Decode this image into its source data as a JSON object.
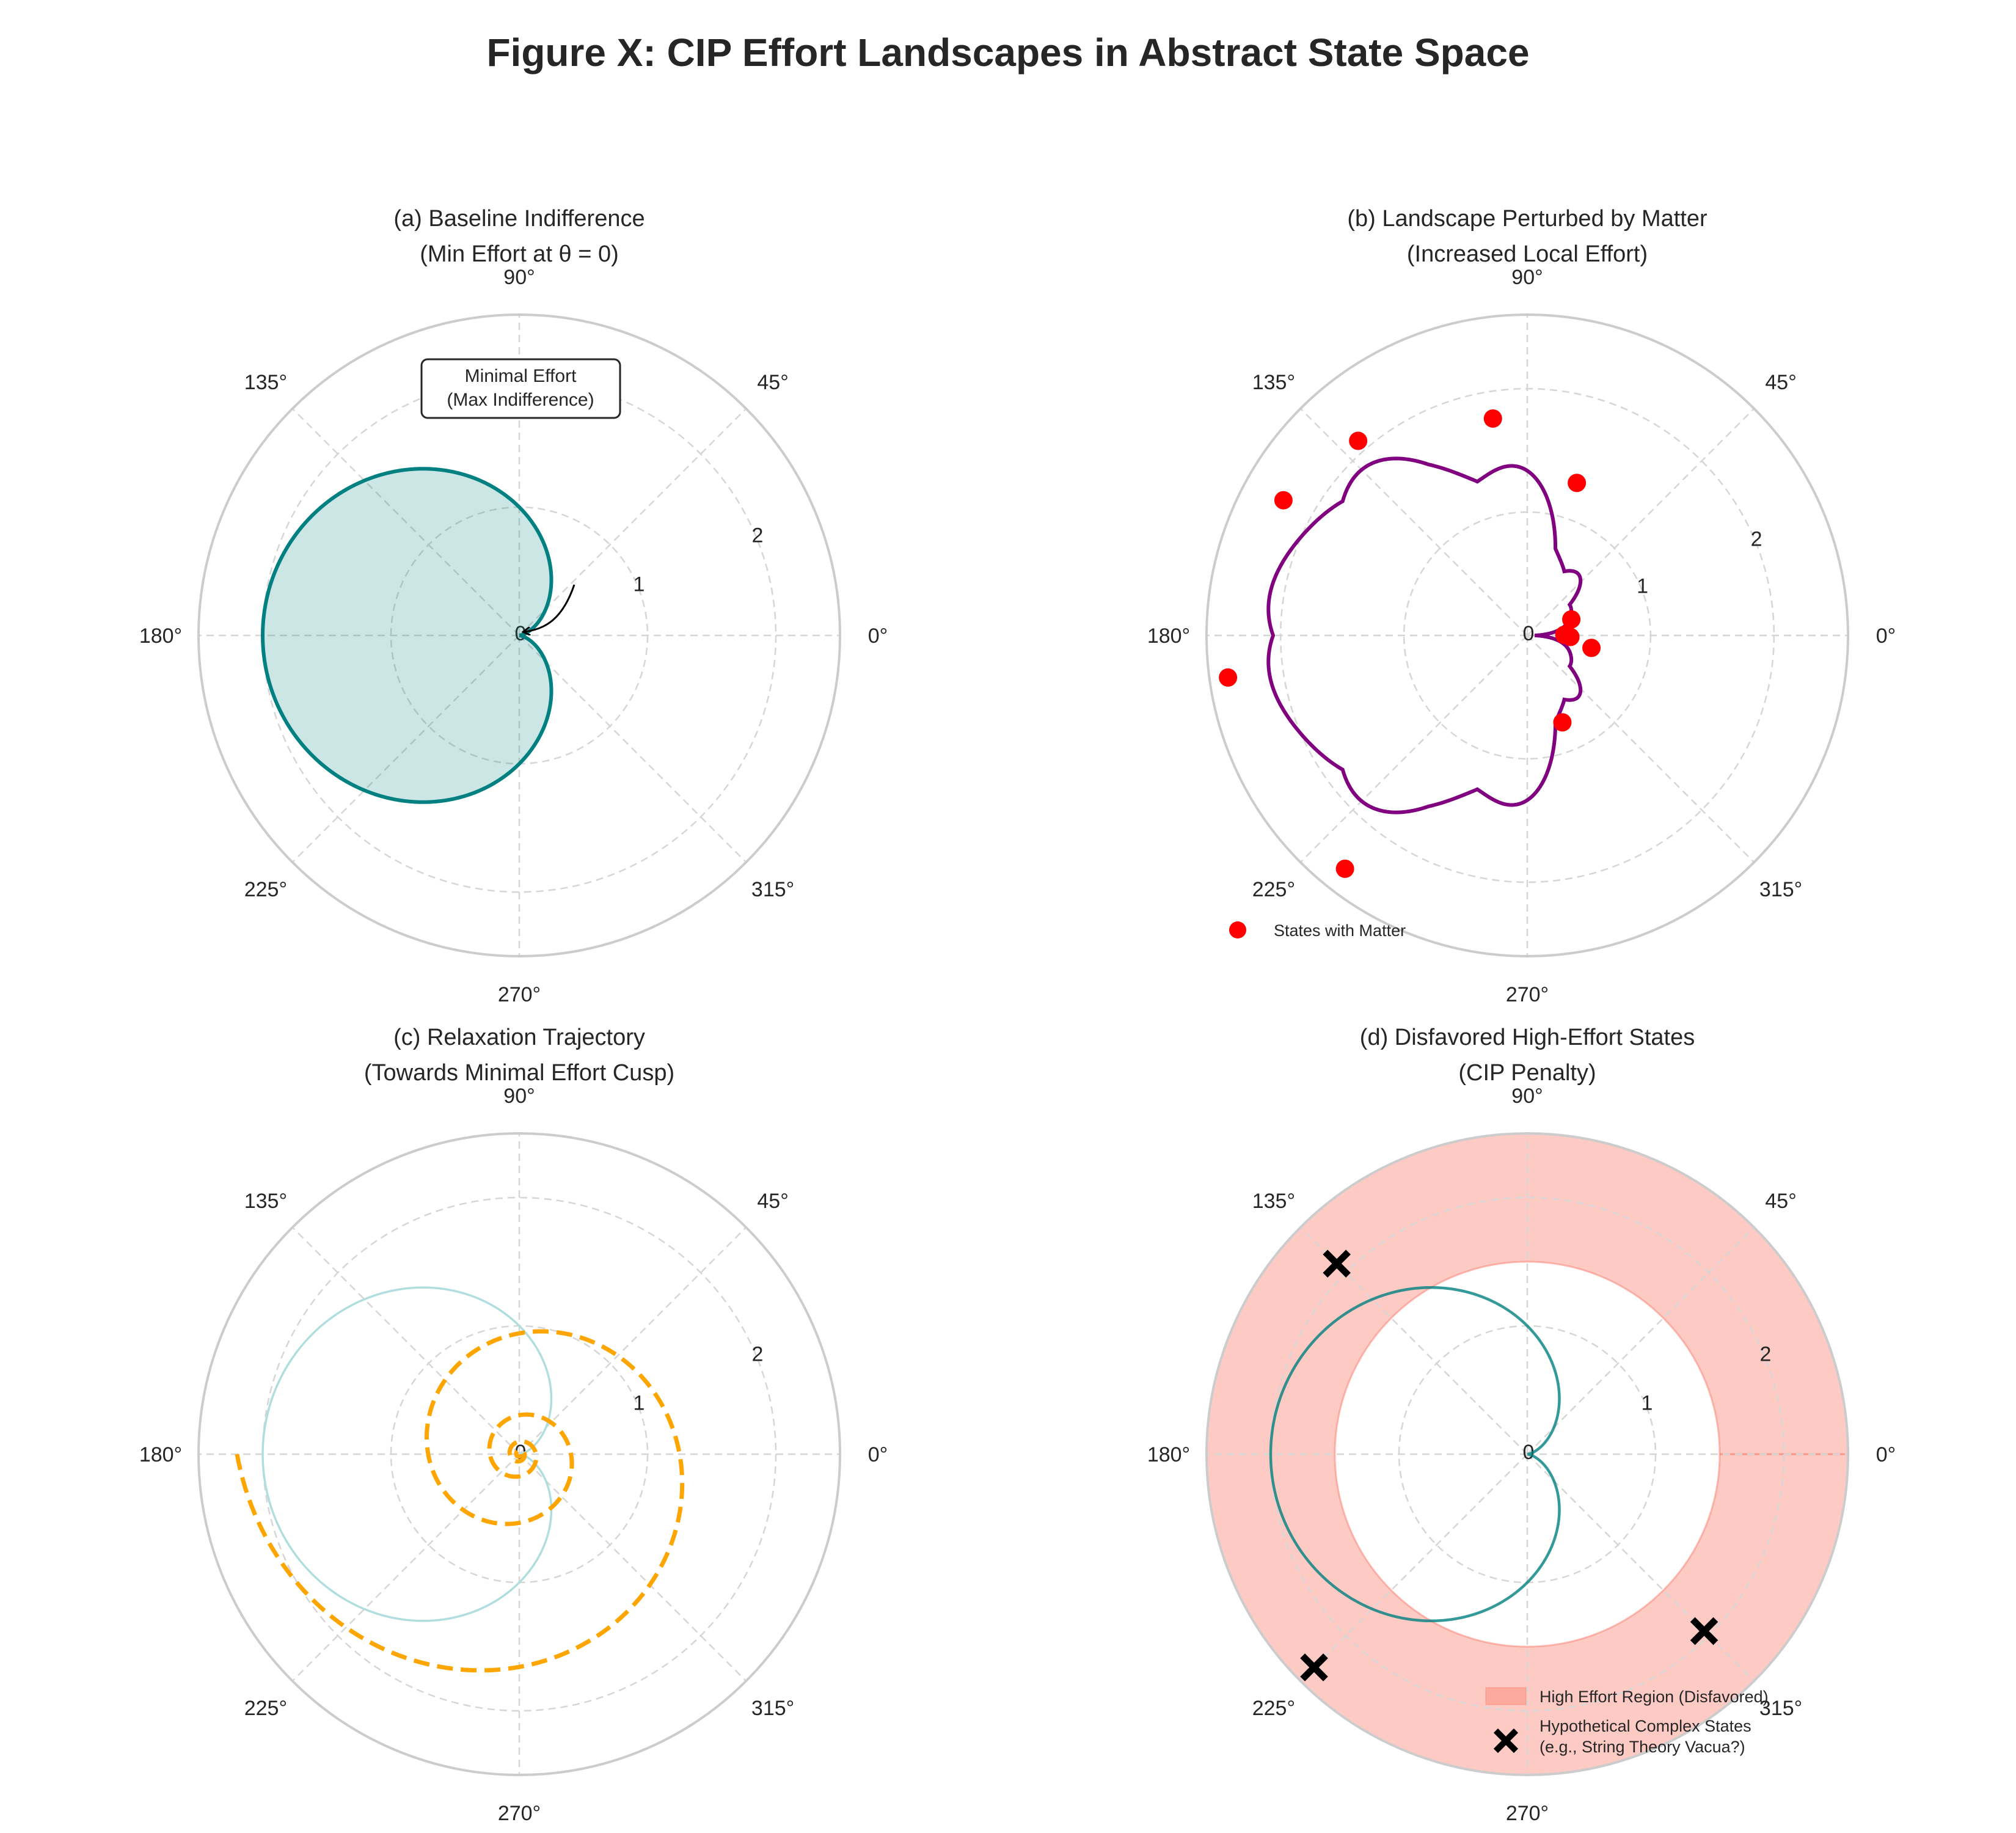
{
  "figure": {
    "title": "Figure X: CIP Effort Landscapes in Abstract State Space"
  },
  "colors": {
    "teal": "#008080",
    "teal_light": "#b0dede",
    "purple": "#800080",
    "red": "#ff0000",
    "orange": "#ffa500",
    "salmon": "#fa8072",
    "black": "#000000",
    "grid": "#cccccc"
  },
  "chart_data": [
    {
      "id": "a",
      "type": "line",
      "projection": "polar",
      "title_line1": "(a) Baseline Indifference",
      "title_line2": "(Min Effort at θ = 0)",
      "rlim": [
        0,
        2.5
      ],
      "r_ticks": [
        "0",
        "1",
        "2"
      ],
      "theta_ticks": [
        "0°",
        "45°",
        "90°",
        "135°",
        "180°",
        "225°",
        "270°",
        "315°"
      ],
      "series": [
        {
          "formula": "r = 1 - cos(theta)",
          "fill": true,
          "color": "#008080"
        }
      ],
      "annotation": {
        "text_line1": "Minimal Effort",
        "text_line2": "(Max Indifference)",
        "points_to": {
          "theta_deg": 0,
          "r": 0
        }
      }
    },
    {
      "id": "b",
      "type": "line",
      "projection": "polar",
      "title_line1": "(b) Landscape Perturbed by Matter",
      "title_line2": "(Increased Local Effort)",
      "rlim": [
        0,
        2.6
      ],
      "r_ticks": [
        "0",
        "1",
        "2"
      ],
      "theta_ticks": [
        "0°",
        "45°",
        "90°",
        "135°",
        "180°",
        "225°",
        "270°",
        "315°"
      ],
      "series": [
        {
          "formula": "r = 1 - cos(theta) + 0.15*|sin(5*theta)| + 0.25*|sin(3*theta)|*(0.5 + 0.5*cos(theta)) + 0.06*cos(8*theta)",
          "color": "#800080"
        }
      ],
      "scatter": {
        "name": "States with Matter",
        "color": "#ff0000",
        "points": [
          {
            "theta_deg": 1,
            "r": 0.3
          },
          {
            "theta_deg": -2,
            "r": 0.35
          },
          {
            "theta_deg": -11,
            "r": 0.53
          },
          {
            "theta_deg": 20,
            "r": 0.38
          },
          {
            "theta_deg": -68,
            "r": 0.76
          },
          {
            "theta_deg": 72,
            "r": 1.3
          },
          {
            "theta_deg": 99,
            "r": 1.78
          },
          {
            "theta_deg": 131,
            "r": 2.09
          },
          {
            "theta_deg": 151,
            "r": 2.26
          },
          {
            "theta_deg": 188,
            "r": 2.45
          },
          {
            "theta_deg": 232,
            "r": 2.4
          }
        ]
      },
      "legend": {
        "loc": "lower left"
      }
    },
    {
      "id": "c",
      "type": "line",
      "projection": "polar",
      "title_line1": "(c) Relaxation Trajectory",
      "title_line2": "(Towards Minimal Effort Cusp)",
      "rlim": [
        0,
        2.5
      ],
      "r_ticks": [
        "0",
        "1",
        "2"
      ],
      "theta_ticks": [
        "0°",
        "45°",
        "90°",
        "135°",
        "180°",
        "225°",
        "270°",
        "315°"
      ],
      "series": [
        {
          "formula": "r = 1 - cos(theta)",
          "color": "#b0dede"
        },
        {
          "formula": "spiral r = 2.2 * e^(-0.18*turn_angle), starting at theta = 180°, counter-clockwise",
          "start_r": 2.2,
          "decay": 0.18,
          "turns": 4.5,
          "color": "#ffa500",
          "style": "dashed"
        }
      ]
    },
    {
      "id": "d",
      "type": "line",
      "projection": "polar",
      "title_line1": "(d) Disfavored High-Effort States",
      "title_line2": "(CIP Penalty)",
      "rlim": [
        0,
        2.5
      ],
      "r_ticks": [
        "0",
        "1",
        "2"
      ],
      "theta_ticks": [
        "0°",
        "45°",
        "90°",
        "135°",
        "180°",
        "225°",
        "270°",
        "315°"
      ],
      "band": {
        "name": "High Effort Region (Disfavored)",
        "r_min": 1.5,
        "r_max": 2.5,
        "color": "#fa8072"
      },
      "series": [
        {
          "formula": "r = 1 - cos(theta)",
          "color": "#008080"
        }
      ],
      "scatter": {
        "name_line1": "Hypothetical Complex States",
        "name_line2": "(e.g., String Theory Vacua?)",
        "marker": "X",
        "color": "#000000",
        "points": [
          {
            "theta_deg": 135,
            "r": 2.1
          },
          {
            "theta_deg": 225,
            "r": 2.35
          },
          {
            "theta_deg": 315,
            "r": 1.95
          }
        ]
      },
      "legend": {
        "loc": "lower right"
      }
    }
  ]
}
